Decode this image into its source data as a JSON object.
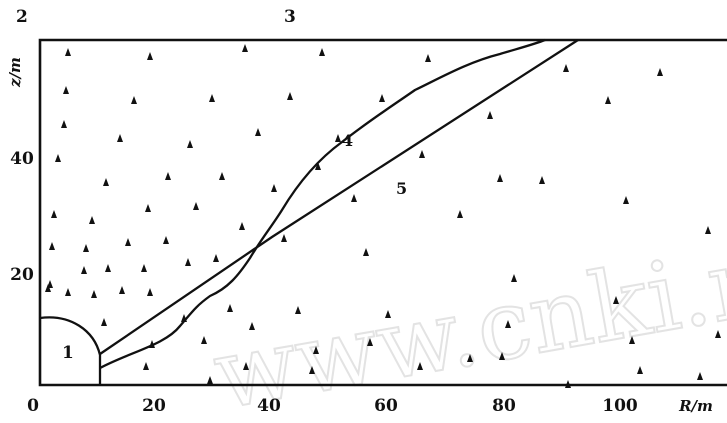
{
  "figure": {
    "axis_labels": {
      "x": "R/m",
      "y": "z/m"
    },
    "x_ticks": [
      "0",
      "20",
      "40",
      "60",
      "80",
      "100"
    ],
    "y_ticks": [
      "20",
      "40"
    ],
    "region_labels": {
      "top_left": "2",
      "top_middle": "3",
      "bottom_left": "1"
    },
    "curve_labels": {
      "curve_4": "4",
      "curve_5": "5"
    },
    "watermark": "www.cnki.net"
  }
}
